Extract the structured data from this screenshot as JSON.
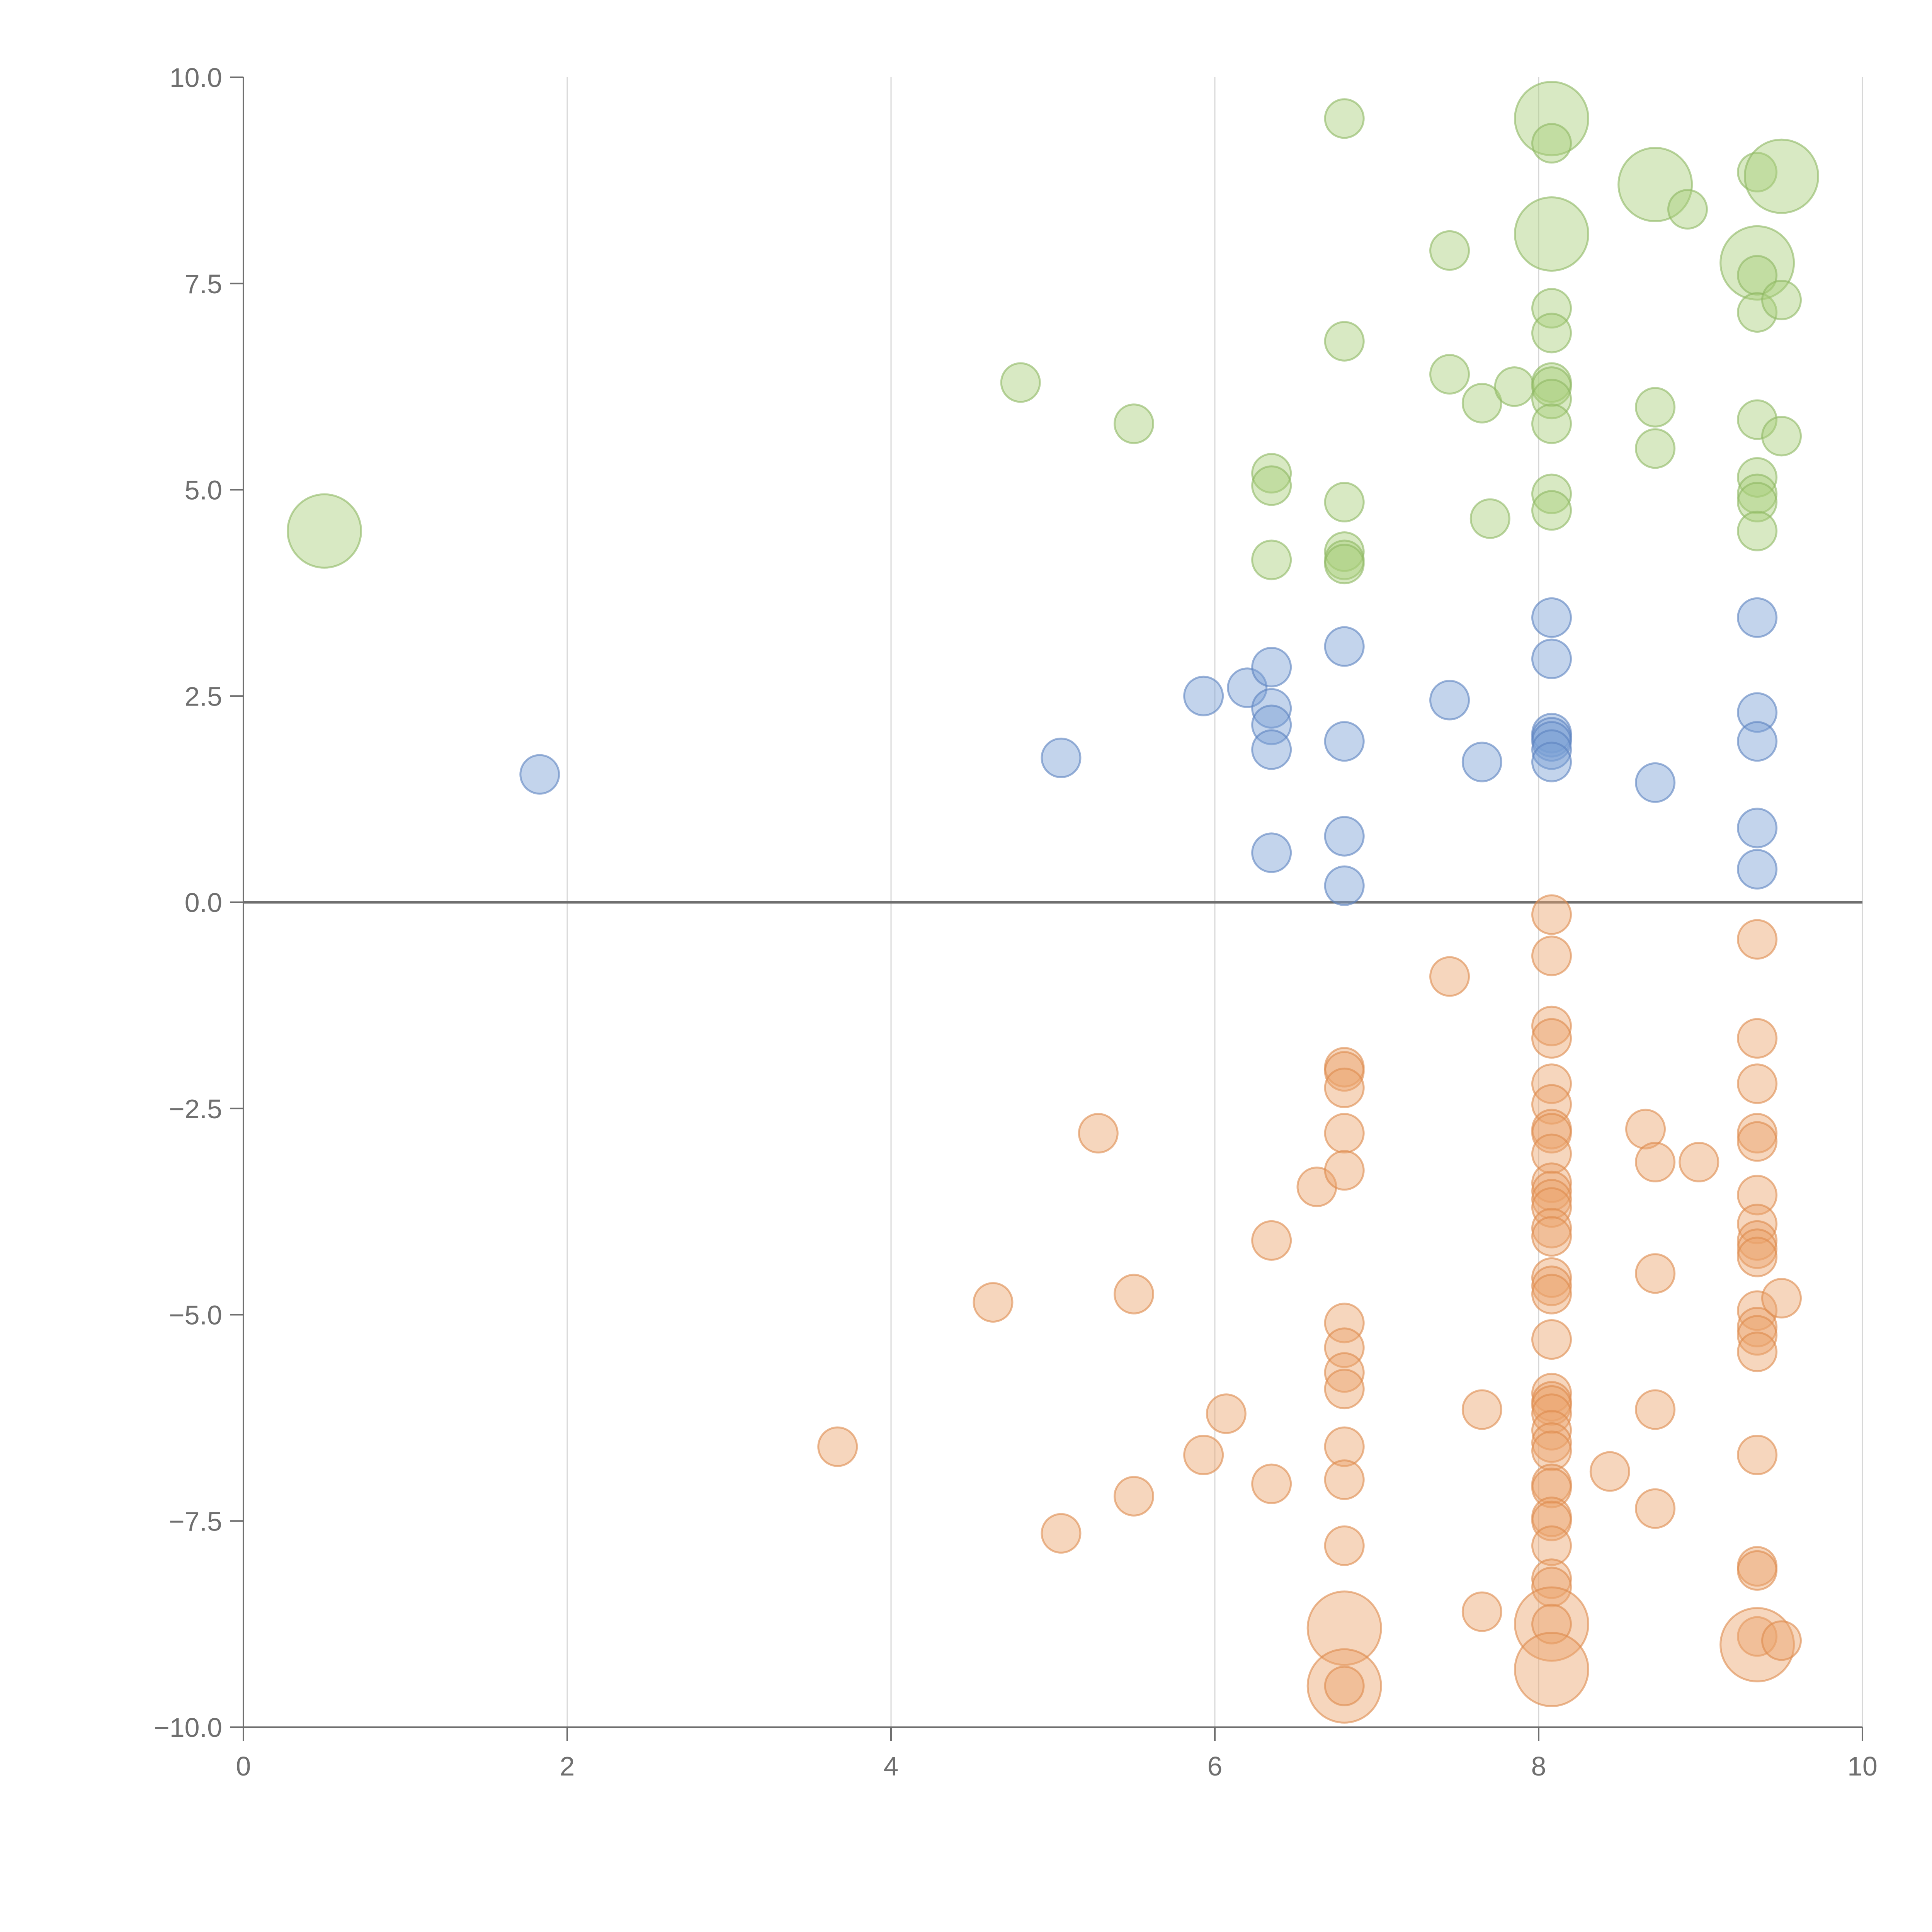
{
  "chart_data": {
    "type": "scatter",
    "title": "",
    "xlabel": "",
    "ylabel": "",
    "xlim": [
      0,
      10
    ],
    "ylim": [
      -10,
      10
    ],
    "xticks": [
      "0",
      "2",
      "4",
      "6",
      "8",
      "10"
    ],
    "yticks": [
      "10.0",
      "7.5",
      "5.0",
      "2.5",
      "0.0",
      "−2.5",
      "−5.0",
      "−7.5",
      "−10.0"
    ],
    "grid": "vertical",
    "legend": "none",
    "series": [
      {
        "name": "green",
        "color": "#a9cf7b",
        "stroke": "#8db862",
        "points": [
          [
            0.5,
            4.5,
            3
          ],
          [
            4.8,
            6.3,
            1
          ],
          [
            5.5,
            5.8,
            1
          ],
          [
            6.35,
            5.2,
            1
          ],
          [
            6.35,
            5.05,
            1
          ],
          [
            6.35,
            4.15,
            1
          ],
          [
            6.8,
            9.5,
            1
          ],
          [
            6.8,
            6.8,
            1
          ],
          [
            6.8,
            4.85,
            1
          ],
          [
            6.8,
            4.25,
            1
          ],
          [
            6.8,
            4.15,
            1
          ],
          [
            6.8,
            4.1,
            1
          ],
          [
            7.45,
            7.9,
            1
          ],
          [
            7.45,
            6.4,
            1
          ],
          [
            7.65,
            6.05,
            1
          ],
          [
            7.7,
            4.65,
            1
          ],
          [
            7.85,
            6.25,
            1
          ],
          [
            8.08,
            9.5,
            3
          ],
          [
            8.08,
            9.2,
            1
          ],
          [
            8.08,
            8.1,
            3
          ],
          [
            8.08,
            7.2,
            1
          ],
          [
            8.08,
            6.9,
            1
          ],
          [
            8.08,
            6.3,
            1
          ],
          [
            8.08,
            6.25,
            1
          ],
          [
            8.08,
            6.1,
            1
          ],
          [
            8.08,
            5.8,
            1
          ],
          [
            8.08,
            4.95,
            1
          ],
          [
            8.08,
            4.75,
            1
          ],
          [
            8.72,
            8.7,
            3
          ],
          [
            8.72,
            6.0,
            1
          ],
          [
            8.72,
            5.5,
            1
          ],
          [
            8.92,
            8.4,
            1
          ],
          [
            9.35,
            8.85,
            1
          ],
          [
            9.35,
            7.75,
            3
          ],
          [
            9.35,
            7.6,
            1
          ],
          [
            9.35,
            7.15,
            1
          ],
          [
            9.35,
            5.85,
            1
          ],
          [
            9.35,
            5.15,
            1
          ],
          [
            9.35,
            4.95,
            1
          ],
          [
            9.35,
            4.85,
            1
          ],
          [
            9.35,
            4.5,
            1
          ],
          [
            9.5,
            8.8,
            3
          ],
          [
            9.5,
            7.3,
            1
          ],
          [
            9.5,
            5.65,
            1
          ]
        ]
      },
      {
        "name": "blue",
        "color": "#7b9fd4",
        "stroke": "#5b82c0",
        "points": [
          [
            1.83,
            1.55,
            1
          ],
          [
            5.05,
            1.75,
            1
          ],
          [
            5.93,
            2.5,
            1
          ],
          [
            6.2,
            2.6,
            1
          ],
          [
            6.35,
            2.85,
            1
          ],
          [
            6.35,
            2.35,
            1
          ],
          [
            6.35,
            2.15,
            1
          ],
          [
            6.35,
            1.85,
            1
          ],
          [
            6.35,
            0.6,
            1
          ],
          [
            6.8,
            3.1,
            1
          ],
          [
            6.8,
            1.95,
            1
          ],
          [
            6.8,
            0.8,
            1
          ],
          [
            6.8,
            0.2,
            1
          ],
          [
            7.45,
            2.45,
            1
          ],
          [
            7.65,
            1.7,
            1
          ],
          [
            8.08,
            3.45,
            1
          ],
          [
            8.08,
            2.95,
            1
          ],
          [
            8.08,
            2.05,
            1
          ],
          [
            8.08,
            2.0,
            1
          ],
          [
            8.08,
            1.95,
            1
          ],
          [
            8.08,
            1.85,
            1
          ],
          [
            8.08,
            1.7,
            1
          ],
          [
            8.72,
            1.45,
            1
          ],
          [
            9.35,
            3.45,
            1
          ],
          [
            9.35,
            2.3,
            1
          ],
          [
            9.35,
            1.95,
            1
          ],
          [
            9.35,
            0.9,
            1
          ],
          [
            9.35,
            0.4,
            1
          ]
        ]
      },
      {
        "name": "orange",
        "color": "#eba36c",
        "stroke": "#de8a4c",
        "points": [
          [
            3.67,
            -6.6,
            1
          ],
          [
            4.63,
            -4.85,
            1
          ],
          [
            5.05,
            -7.65,
            1
          ],
          [
            5.28,
            -2.8,
            1
          ],
          [
            5.5,
            -4.75,
            1
          ],
          [
            5.5,
            -7.2,
            1
          ],
          [
            5.93,
            -6.7,
            1
          ],
          [
            6.07,
            -6.2,
            1
          ],
          [
            6.35,
            -4.1,
            1
          ],
          [
            6.35,
            -7.05,
            1
          ],
          [
            6.63,
            -3.45,
            1
          ],
          [
            6.8,
            -2.0,
            1
          ],
          [
            6.8,
            -2.05,
            1
          ],
          [
            6.8,
            -2.25,
            1
          ],
          [
            6.8,
            -2.8,
            1
          ],
          [
            6.8,
            -3.25,
            1
          ],
          [
            6.8,
            -5.1,
            1
          ],
          [
            6.8,
            -5.4,
            1
          ],
          [
            6.8,
            -5.7,
            1
          ],
          [
            6.8,
            -5.9,
            1
          ],
          [
            6.8,
            -6.6,
            1
          ],
          [
            6.8,
            -7.0,
            1
          ],
          [
            6.8,
            -7.8,
            1
          ],
          [
            6.8,
            -8.8,
            3
          ],
          [
            6.8,
            -9.5,
            3
          ],
          [
            6.8,
            -9.5,
            1
          ],
          [
            7.45,
            -0.9,
            1
          ],
          [
            7.65,
            -6.15,
            1
          ],
          [
            7.65,
            -8.6,
            1
          ],
          [
            8.08,
            -0.15,
            1
          ],
          [
            8.08,
            -0.65,
            1
          ],
          [
            8.08,
            -1.5,
            1
          ],
          [
            8.08,
            -1.65,
            1
          ],
          [
            8.08,
            -2.2,
            1
          ],
          [
            8.08,
            -2.45,
            1
          ],
          [
            8.08,
            -2.75,
            1
          ],
          [
            8.08,
            -2.8,
            1
          ],
          [
            8.08,
            -3.05,
            1
          ],
          [
            8.08,
            -3.4,
            1
          ],
          [
            8.08,
            -3.5,
            1
          ],
          [
            8.08,
            -3.6,
            1
          ],
          [
            8.08,
            -3.7,
            1
          ],
          [
            8.08,
            -3.95,
            1
          ],
          [
            8.08,
            -4.05,
            1
          ],
          [
            8.08,
            -4.55,
            1
          ],
          [
            8.08,
            -4.65,
            1
          ],
          [
            8.08,
            -4.75,
            1
          ],
          [
            8.08,
            -5.3,
            1
          ],
          [
            8.08,
            -5.95,
            1
          ],
          [
            8.08,
            -6.05,
            1
          ],
          [
            8.08,
            -6.1,
            1
          ],
          [
            8.08,
            -6.2,
            1
          ],
          [
            8.08,
            -6.4,
            1
          ],
          [
            8.08,
            -6.55,
            1
          ],
          [
            8.08,
            -6.65,
            1
          ],
          [
            8.08,
            -7.05,
            1
          ],
          [
            8.08,
            -7.1,
            1
          ],
          [
            8.08,
            -7.45,
            1
          ],
          [
            8.08,
            -7.5,
            1
          ],
          [
            8.08,
            -7.8,
            1
          ],
          [
            8.08,
            -8.2,
            1
          ],
          [
            8.08,
            -8.3,
            1
          ],
          [
            8.08,
            -8.75,
            3
          ],
          [
            8.08,
            -8.75,
            1
          ],
          [
            8.08,
            -9.3,
            3
          ],
          [
            8.44,
            -6.9,
            1
          ],
          [
            8.66,
            -2.75,
            1
          ],
          [
            8.72,
            -3.15,
            1
          ],
          [
            8.72,
            -4.5,
            1
          ],
          [
            8.72,
            -6.15,
            1
          ],
          [
            8.72,
            -7.35,
            1
          ],
          [
            8.99,
            -3.15,
            1
          ],
          [
            9.35,
            -0.45,
            1
          ],
          [
            9.35,
            -1.65,
            1
          ],
          [
            9.35,
            -2.2,
            1
          ],
          [
            9.35,
            -2.8,
            1
          ],
          [
            9.35,
            -2.9,
            1
          ],
          [
            9.35,
            -3.55,
            1
          ],
          [
            9.35,
            -3.9,
            1
          ],
          [
            9.35,
            -4.1,
            1
          ],
          [
            9.35,
            -4.2,
            1
          ],
          [
            9.35,
            -4.3,
            1
          ],
          [
            9.35,
            -4.95,
            1
          ],
          [
            9.35,
            -5.15,
            1
          ],
          [
            9.35,
            -5.25,
            1
          ],
          [
            9.35,
            -5.45,
            1
          ],
          [
            9.35,
            -6.7,
            1
          ],
          [
            9.35,
            -8.05,
            1
          ],
          [
            9.35,
            -8.1,
            1
          ],
          [
            9.35,
            -8.9,
            1
          ],
          [
            9.35,
            -9.0,
            3
          ],
          [
            9.5,
            -4.8,
            1
          ],
          [
            9.5,
            -8.95,
            1
          ]
        ]
      }
    ]
  }
}
